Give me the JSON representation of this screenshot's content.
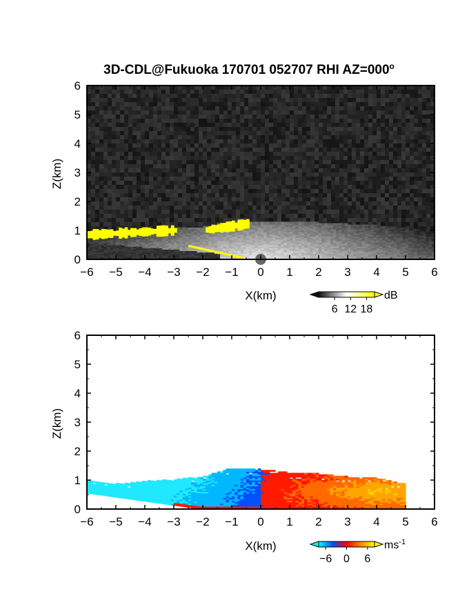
{
  "title": "3D-CDL@Fukuoka 170701 052707 RHI AZ=000",
  "title_sup": "o",
  "chart_data": [
    {
      "type": "heatmap",
      "quantity": "backscatter intensity",
      "xlabel": "X(km)",
      "ylabel": "Z(km)",
      "xlim": [
        -6,
        6
      ],
      "ylim": [
        0,
        6
      ],
      "xticks": [
        -6,
        -5,
        -4,
        -3,
        -2,
        -1,
        0,
        1,
        2,
        3,
        4,
        5,
        6
      ],
      "yticks": [
        0,
        1,
        2,
        3,
        4,
        5,
        6
      ],
      "colorbar": {
        "unit": "dB",
        "ticks": [
          6,
          12,
          18
        ],
        "range": [
          0,
          21
        ],
        "colors": [
          "#111111",
          "#ffffff",
          "#ffff00"
        ]
      },
      "echo_top_km": [
        [
          -6,
          1.0
        ],
        [
          -5,
          0.95
        ],
        [
          -4,
          1.05
        ],
        [
          -3,
          1.05
        ],
        [
          -2,
          1.1
        ],
        [
          -1,
          1.3
        ],
        [
          0,
          1.3
        ],
        [
          1,
          1.3
        ],
        [
          2,
          1.25
        ],
        [
          3,
          1.2
        ],
        [
          4,
          1.15
        ],
        [
          5,
          1.05
        ],
        [
          6,
          0.95
        ]
      ],
      "saturated_region": "yellow band near Z 0.8-1.1 km from X -6 to -3 km and near X -2 to -0.5 km"
    },
    {
      "type": "heatmap",
      "quantity": "Doppler velocity",
      "xlabel": "X(km)",
      "ylabel": "Z(km)",
      "xlim": [
        -6,
        6
      ],
      "ylim": [
        0,
        6
      ],
      "xticks": [
        -6,
        -5,
        -4,
        -3,
        -2,
        -1,
        0,
        1,
        2,
        3,
        4,
        5,
        6
      ],
      "yticks": [
        0,
        1,
        2,
        3,
        4,
        5,
        6
      ],
      "colorbar": {
        "unit": "ms",
        "unit_sup": "-1",
        "ticks": [
          -6,
          0,
          6
        ],
        "tick_labels": [
          "−6",
          "0",
          "6"
        ],
        "range": [
          -8,
          8
        ],
        "colors": [
          "#00ffff",
          "#0050ff",
          "#ff0000",
          "#ff8800",
          "#ffff00"
        ]
      },
      "echo_top_km": [
        [
          -6,
          0.95
        ],
        [
          -5,
          0.85
        ],
        [
          -4,
          0.95
        ],
        [
          -3,
          1.0
        ],
        [
          -2,
          1.1
        ],
        [
          -1,
          1.4
        ],
        [
          0,
          1.35
        ],
        [
          1,
          1.25
        ],
        [
          2,
          1.2
        ],
        [
          3,
          1.1
        ],
        [
          4,
          1.05
        ],
        [
          5,
          0.85
        ]
      ],
      "velocity_pattern": "negative (toward radar, blue/cyan) for X<0 and positive (away, red/orange/yellow) for X>0"
    }
  ]
}
